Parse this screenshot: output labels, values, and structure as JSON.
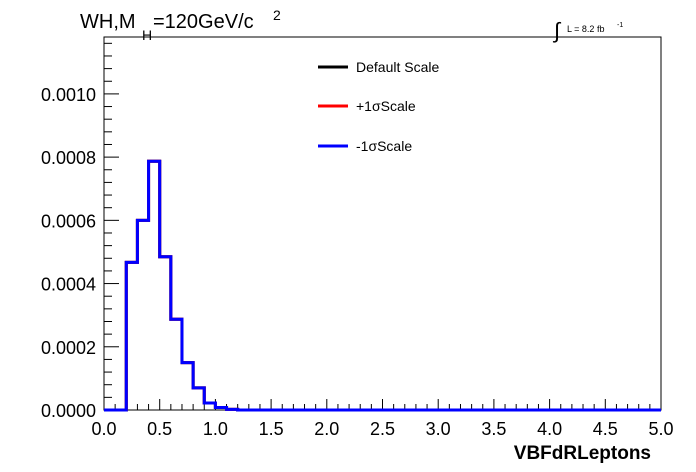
{
  "chart_data": {
    "type": "line",
    "title": {
      "prefix": "WH,M",
      "subscript": "H",
      "value": "=120GeV/c",
      "superscript": "2"
    },
    "luminosity": {
      "integral_symbol": "∫",
      "text": "L = 8.2 fb",
      "superscript": "-1"
    },
    "xlabel": "VBFdRLeptons",
    "ylabel": "",
    "xlim": [
      0.0,
      5.0
    ],
    "ylim": [
      0.0,
      0.00118
    ],
    "x_ticks": [
      "0.0",
      "0.5",
      "1.0",
      "1.5",
      "2.0",
      "2.5",
      "3.0",
      "3.5",
      "4.0",
      "4.5",
      "5.0"
    ],
    "y_ticks": [
      "0.0000",
      "0.0002",
      "0.0004",
      "0.0006",
      "0.0008",
      "0.0010"
    ],
    "bin_edges": [
      0.0,
      0.1,
      0.2,
      0.3,
      0.4,
      0.5,
      0.6,
      0.7,
      0.8,
      0.9,
      1.0,
      1.1,
      1.2,
      1.3,
      1.4,
      1.5,
      1.6,
      1.7,
      1.8,
      1.9,
      2.0,
      2.1,
      2.2,
      2.3,
      2.4,
      2.5,
      2.6,
      2.7,
      2.8,
      2.9,
      3.0,
      3.1,
      3.2,
      3.3,
      3.4,
      3.5,
      3.6,
      3.7,
      3.8,
      3.9,
      4.0,
      4.1,
      4.2,
      4.3,
      4.4,
      4.5,
      4.6,
      4.7,
      4.8,
      4.9,
      5.0
    ],
    "series": [
      {
        "name": "Default Scale",
        "color": "#000000",
        "values": [
          0,
          0,
          0.000467,
          0.0006,
          0.000787,
          0.000485,
          0.000287,
          0.00015,
          7e-05,
          2.2e-05,
          8e-06,
          2e-06,
          0,
          0,
          0,
          0,
          0,
          0,
          0,
          0,
          0,
          0,
          0,
          0,
          0,
          0,
          0,
          0,
          0,
          0,
          0,
          0,
          0,
          0,
          0,
          0,
          0,
          0,
          0,
          0,
          0,
          0,
          0,
          0,
          0,
          0,
          0,
          0,
          0,
          0
        ]
      },
      {
        "name": "+1σScale",
        "color": "#ff0000",
        "values": [
          0,
          0,
          0.000467,
          0.0006,
          0.000787,
          0.000485,
          0.000287,
          0.00015,
          7e-05,
          2.2e-05,
          8e-06,
          2e-06,
          0,
          0,
          0,
          0,
          0,
          0,
          0,
          0,
          0,
          0,
          0,
          0,
          0,
          0,
          0,
          0,
          0,
          0,
          0,
          0,
          0,
          0,
          0,
          0,
          0,
          0,
          0,
          0,
          0,
          0,
          0,
          0,
          0,
          0,
          0,
          0,
          0,
          0
        ]
      },
      {
        "name": "-1σScale",
        "color": "#0000ff",
        "values": [
          0,
          0,
          0.000467,
          0.0006,
          0.000787,
          0.000485,
          0.000287,
          0.00015,
          7e-05,
          2.2e-05,
          8e-06,
          2e-06,
          0,
          0,
          0,
          0,
          0,
          0,
          0,
          0,
          0,
          0,
          0,
          0,
          0,
          0,
          0,
          0,
          0,
          0,
          0,
          0,
          0,
          0,
          0,
          0,
          0,
          0,
          0,
          0,
          0,
          0,
          0,
          0,
          0,
          0,
          0,
          0,
          0,
          0
        ]
      }
    ],
    "legend_position": "top-center",
    "grid": false
  }
}
